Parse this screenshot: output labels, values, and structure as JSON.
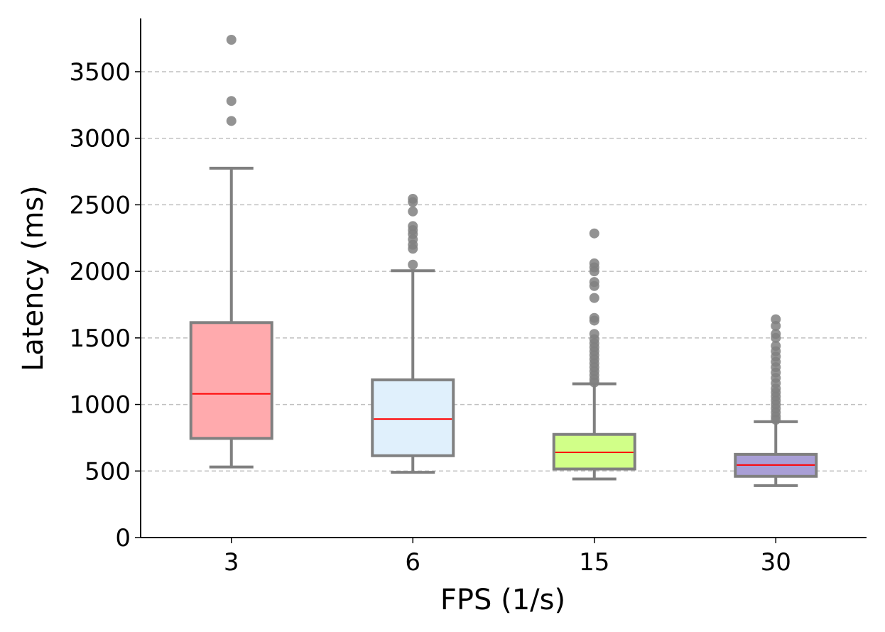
{
  "chart_data": {
    "type": "box",
    "title": "",
    "xlabel": "FPS (1/s)",
    "ylabel": "Latency (ms)",
    "ylim": [
      0,
      3900
    ],
    "yticks": [
      0,
      500,
      1000,
      1500,
      2000,
      2500,
      3000,
      3500
    ],
    "grid": "horizontal-dashed",
    "categories": [
      "3",
      "6",
      "15",
      "30"
    ],
    "colors": {
      "box_edge": "#808080",
      "median": "#ff0000",
      "grid": "#c0c0c0",
      "axis": "#000000"
    },
    "boxes": [
      {
        "category": "3",
        "fill": "#ffaaad",
        "whisker_low": 530,
        "q1": 745,
        "median": 1080,
        "q3": 1615,
        "whisker_high": 2775,
        "outliers": [
          3130,
          3280,
          3740
        ]
      },
      {
        "category": "6",
        "fill": "#e0f0fc",
        "whisker_low": 490,
        "q1": 615,
        "median": 890,
        "q3": 1185,
        "whisker_high": 2005,
        "outliers": [
          2050,
          2170,
          2200,
          2240,
          2280,
          2310,
          2340,
          2450,
          2520,
          2545
        ]
      },
      {
        "category": "15",
        "fill": "#d1ff88",
        "whisker_low": 440,
        "q1": 515,
        "median": 640,
        "q3": 775,
        "whisker_high": 1155,
        "outliers": [
          1165,
          1190,
          1220,
          1250,
          1280,
          1310,
          1340,
          1370,
          1400,
          1430,
          1460,
          1490,
          1530,
          1630,
          1650,
          1800,
          1890,
          1920,
          2000,
          2030,
          2060,
          2285
        ]
      },
      {
        "category": "30",
        "fill": "#a99fd6",
        "whisker_low": 390,
        "q1": 460,
        "median": 545,
        "q3": 625,
        "whisker_high": 870,
        "outliers": [
          885,
          910,
          940,
          970,
          1000,
          1030,
          1060,
          1090,
          1120,
          1160,
          1200,
          1240,
          1280,
          1320,
          1360,
          1400,
          1440,
          1500,
          1530,
          1590,
          1640
        ]
      }
    ]
  }
}
